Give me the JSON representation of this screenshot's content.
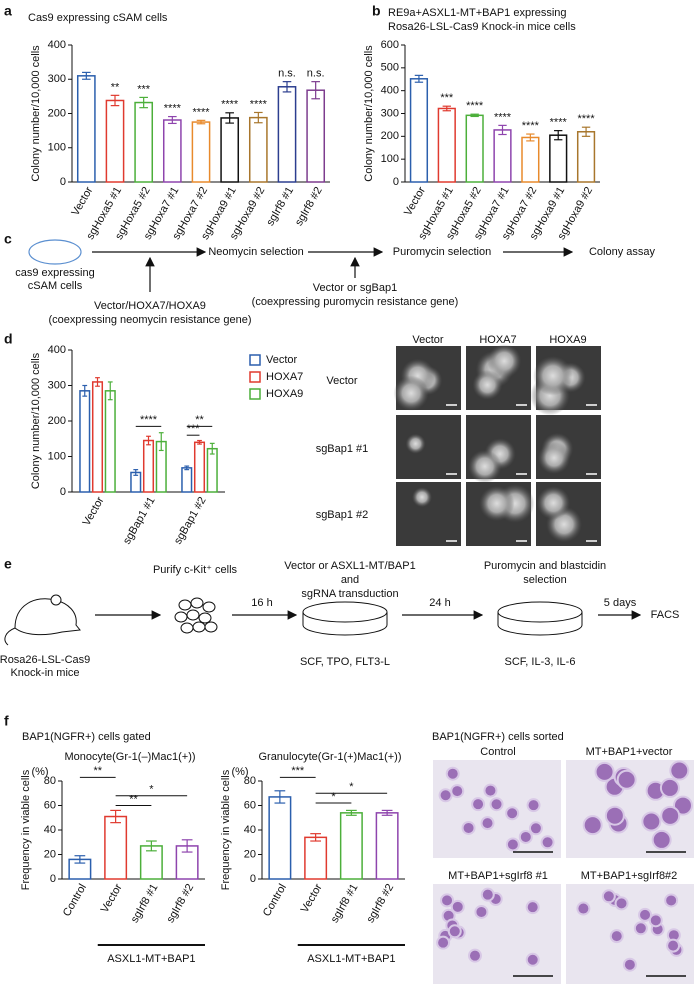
{
  "panel_labels": [
    "a",
    "b",
    "c",
    "d",
    "e",
    "f"
  ],
  "chart_data": [
    {
      "type": "bar",
      "title": [
        "Cas9 expressing cSAM cells"
      ],
      "ylabel": "Colony number/10,000 cells",
      "categories": [
        "Vector",
        "sgHoxa5 #1",
        "sgHoxa5 #2",
        "sgHoxa7 #1",
        "sgHoxa7 #2",
        "sgHoxa9 #1",
        "sgHoxa9 #2",
        "sgIrf8 #1",
        "sgIrf8 #2"
      ],
      "values": [
        310,
        238,
        232,
        181,
        175,
        187,
        188,
        278,
        268
      ],
      "errors": [
        10,
        15,
        15,
        10,
        5,
        15,
        15,
        15,
        25
      ],
      "annotations": [
        null,
        "**",
        "***",
        "****",
        "****",
        "****",
        "****",
        "n.s.",
        "n.s."
      ],
      "colors": [
        "#2b5fad",
        "#e03a2f",
        "#4caf3a",
        "#8e44ad",
        "#e88a2c",
        "#111111",
        "#a8762c",
        "#2c3e8f",
        "#7d3c8e"
      ],
      "ylim": [
        0,
        400
      ],
      "yticks": [
        0,
        100,
        200,
        300,
        400
      ]
    },
    {
      "type": "bar",
      "title": [
        "RE9a+ASXL1-MT+BAP1 expressing",
        "Rosa26-LSL-Cas9 Knock-in mice cells"
      ],
      "ylabel": "Colony number/10,000 cells",
      "categories": [
        "Vector",
        "sgHoxa5 #1",
        "sgHoxa5 #2",
        "sgHoxa7 #1",
        "sgHoxa7 #2",
        "sgHoxa9 #1",
        "sgHoxa9 #2"
      ],
      "values": [
        452,
        322,
        292,
        228,
        195,
        205,
        220
      ],
      "errors": [
        15,
        10,
        5,
        20,
        15,
        20,
        20
      ],
      "annotations": [
        null,
        "***",
        "****",
        "****",
        "****",
        "****",
        "****"
      ],
      "colors": [
        "#2b5fad",
        "#e03a2f",
        "#4caf3a",
        "#8e44ad",
        "#e88a2c",
        "#111111",
        "#a8762c"
      ],
      "ylim": [
        0,
        600
      ],
      "yticks": [
        0,
        100,
        200,
        300,
        400,
        500,
        600
      ]
    },
    {
      "type": "bar",
      "ylabel": "Colony number/10,000 cells",
      "categories": [
        "Vector",
        "sgBap1 #1",
        "sgBap1 #2"
      ],
      "series": [
        {
          "name": "Vector",
          "color": "#2b5fad",
          "values": [
            285,
            55,
            68
          ],
          "errors": [
            15,
            8,
            5
          ]
        },
        {
          "name": "HOXA7",
          "color": "#e03a2f",
          "values": [
            310,
            145,
            140
          ],
          "errors": [
            12,
            12,
            5
          ]
        },
        {
          "name": "HOXA9",
          "color": "#4caf3a",
          "values": [
            285,
            142,
            122
          ],
          "errors": [
            25,
            25,
            15
          ]
        }
      ],
      "brackets": [
        "****",
        "**",
        "***"
      ],
      "ylim": [
        0,
        400
      ],
      "yticks": [
        0,
        100,
        200,
        300,
        400
      ]
    },
    {
      "type": "bar",
      "title": [
        "Monocyte(Gr-1(–)Mac1(+))"
      ],
      "ylabel": "Frequency in viable cells",
      "y_unit": "(%)",
      "categories": [
        "Control",
        "Vector",
        "sgIrf8 #1",
        "sgIrf8 #2"
      ],
      "values": [
        16,
        51,
        27,
        27
      ],
      "errors": [
        3,
        5,
        4,
        5
      ],
      "colors": [
        "#2b5fad",
        "#e03a2f",
        "#4caf3a",
        "#8e44ad"
      ],
      "brackets": [
        "**",
        "*",
        "**"
      ],
      "group_label": "ASXL1-MT+BAP1",
      "ylim": [
        0,
        80
      ],
      "yticks": [
        0,
        20,
        40,
        60,
        80
      ]
    },
    {
      "type": "bar",
      "title": [
        "Granulocyte(Gr-1(+)Mac1(+))"
      ],
      "ylabel": "Frequency in viable cells",
      "y_unit": "(%)",
      "categories": [
        "Control",
        "Vector",
        "sgIrf8 #1",
        "sgIrf8 #2"
      ],
      "values": [
        67,
        34,
        54,
        54
      ],
      "errors": [
        5,
        3,
        2,
        2
      ],
      "colors": [
        "#2b5fad",
        "#e03a2f",
        "#4caf3a",
        "#8e44ad"
      ],
      "brackets": [
        "***",
        "*",
        "*"
      ],
      "group_label": "ASXL1-MT+BAP1",
      "ylim": [
        0,
        80
      ],
      "yticks": [
        0,
        20,
        40,
        60,
        80
      ]
    }
  ],
  "diagram_c": {
    "start": [
      "cas9 expressing",
      "cSAM cells"
    ],
    "steps": [
      "Neomycin selection",
      "Puromycin selection",
      "Colony assay"
    ],
    "input1": [
      "Vector/HOXA7/HOXA9",
      "(coexpressing neomycin resistance gene)"
    ],
    "input2": [
      "Vector or sgBap1",
      "(coexpressing puromycin resistance gene)"
    ]
  },
  "micrographs_d": {
    "columns": [
      "Vector",
      "HOXA7",
      "HOXA9"
    ],
    "rows": [
      "Vector",
      "sgBap1 #1",
      "sgBap1 #2"
    ]
  },
  "diagram_e": {
    "mouse": [
      "Rosa26-LSL-Cas9",
      "Knock-in mice"
    ],
    "purify": "Purify c-Kit⁺ cells",
    "t1": "16 h",
    "transduction": [
      "Vector or ASXL1-MT/BAP1",
      "and",
      "sgRNA transduction"
    ],
    "media1": "SCF, TPO, FLT3-L",
    "t2": "24 h",
    "selection": [
      "Puromycin and blastcidin",
      "selection"
    ],
    "media2": "SCF, IL-3, IL-6",
    "t3": "5 days",
    "end": "FACS"
  },
  "panel_f": {
    "gated": "BAP1(NGFR+) cells gated",
    "sorted": "BAP1(NGFR+) cells sorted",
    "images": [
      "Control",
      "MT+BAP1+vector",
      "MT+BAP1+sgIrf8 #1",
      "MT+BAP1+sgIrf8#2"
    ]
  }
}
